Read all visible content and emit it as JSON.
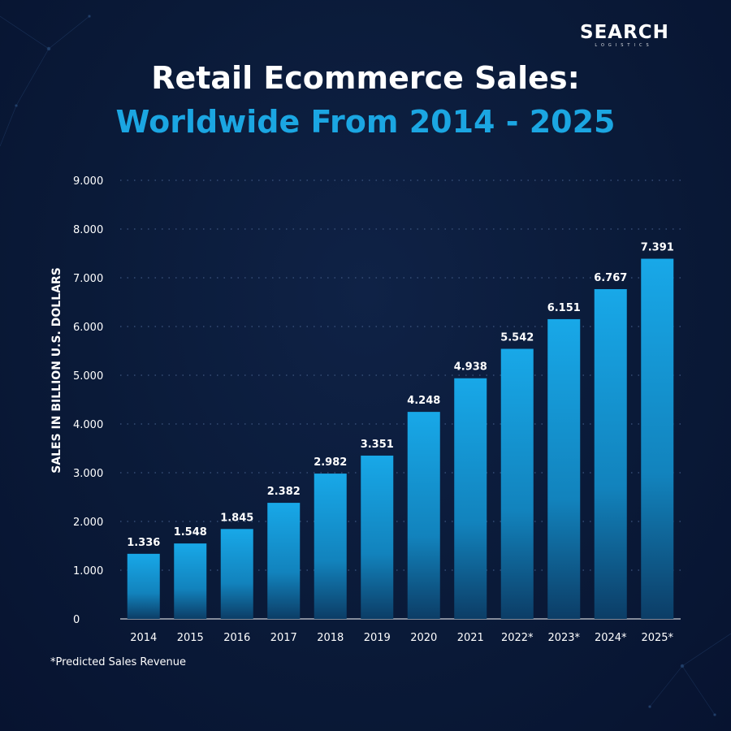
{
  "brand": {
    "logo_main": "SEARCH",
    "logo_sub": "LOGISTICS"
  },
  "colors": {
    "title_accent": "#1ba6e2",
    "bar_top": "#18a8e8",
    "bar_bottom": "#0c3d66",
    "background": "#0a1a38"
  },
  "footnote": "*Predicted Sales Revenue",
  "chart_data": {
    "type": "bar",
    "title": "Retail Ecommerce Sales:",
    "subtitle": "Worldwide From 2014 - 2025",
    "xlabel": "",
    "ylabel": "SALES IN BILLION U.S. DOLLARS",
    "categories": [
      "2014",
      "2015",
      "2016",
      "2017",
      "2018",
      "2019",
      "2020",
      "2021",
      "2022*",
      "2023*",
      "2024*",
      "2025*"
    ],
    "values": [
      1336,
      1548,
      1845,
      2382,
      2982,
      3351,
      4248,
      4938,
      5542,
      6151,
      6767,
      7391
    ],
    "value_labels": [
      "1.336",
      "1.548",
      "1.845",
      "2.382",
      "2.982",
      "3.351",
      "4.248",
      "4.938",
      "5.542",
      "6.151",
      "6.767",
      "7.391"
    ],
    "y_ticks": [
      0,
      1000,
      2000,
      3000,
      4000,
      5000,
      6000,
      7000,
      8000,
      9000
    ],
    "y_tick_labels": [
      "0",
      "1.000",
      "2.000",
      "3.000",
      "4.000",
      "5.000",
      "6.000",
      "7.000",
      "8.000",
      "9.000"
    ],
    "ylim": [
      0,
      9000
    ],
    "grid": "dotted horizontal",
    "legend": "none"
  }
}
